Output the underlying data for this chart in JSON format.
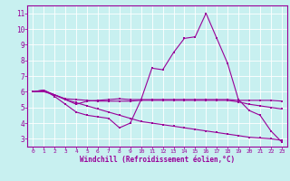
{
  "xlabel": "Windchill (Refroidissement éolien,°C)",
  "background_color": "#c8f0f0",
  "grid_color": "#ffffff",
  "line_color": "#990099",
  "x_values": [
    0,
    1,
    2,
    3,
    4,
    5,
    6,
    7,
    8,
    9,
    10,
    11,
    12,
    13,
    14,
    15,
    16,
    17,
    18,
    19,
    20,
    21,
    22,
    23
  ],
  "line1": [
    6.0,
    6.1,
    5.8,
    5.5,
    5.2,
    5.4,
    5.45,
    5.5,
    5.55,
    5.5,
    5.5,
    5.5,
    5.5,
    5.5,
    5.5,
    5.5,
    5.5,
    5.5,
    5.5,
    5.45,
    5.45,
    5.45,
    5.45,
    5.4
  ],
  "line2": [
    6.0,
    6.1,
    5.7,
    5.2,
    4.7,
    4.5,
    4.4,
    4.3,
    3.7,
    4.0,
    5.5,
    7.5,
    7.4,
    8.5,
    9.4,
    9.5,
    11.0,
    9.4,
    7.8,
    5.5,
    4.8,
    4.5,
    3.5,
    2.8
  ],
  "line3": [
    6.0,
    6.0,
    5.8,
    5.5,
    5.3,
    5.1,
    4.9,
    4.7,
    4.5,
    4.3,
    4.1,
    4.0,
    3.9,
    3.8,
    3.7,
    3.6,
    3.5,
    3.4,
    3.3,
    3.2,
    3.1,
    3.05,
    3.0,
    2.9
  ],
  "line4": [
    6.0,
    6.05,
    5.8,
    5.55,
    5.5,
    5.45,
    5.4,
    5.4,
    5.4,
    5.4,
    5.45,
    5.45,
    5.45,
    5.45,
    5.45,
    5.45,
    5.45,
    5.45,
    5.45,
    5.35,
    5.2,
    5.1,
    5.0,
    4.9
  ],
  "ylim": [
    2.5,
    11.5
  ],
  "xlim": [
    -0.5,
    23.5
  ],
  "yticks": [
    3,
    4,
    5,
    6,
    7,
    8,
    9,
    10,
    11
  ],
  "xticks": [
    0,
    1,
    2,
    3,
    4,
    5,
    6,
    7,
    8,
    9,
    10,
    11,
    12,
    13,
    14,
    15,
    16,
    17,
    18,
    19,
    20,
    21,
    22,
    23
  ]
}
